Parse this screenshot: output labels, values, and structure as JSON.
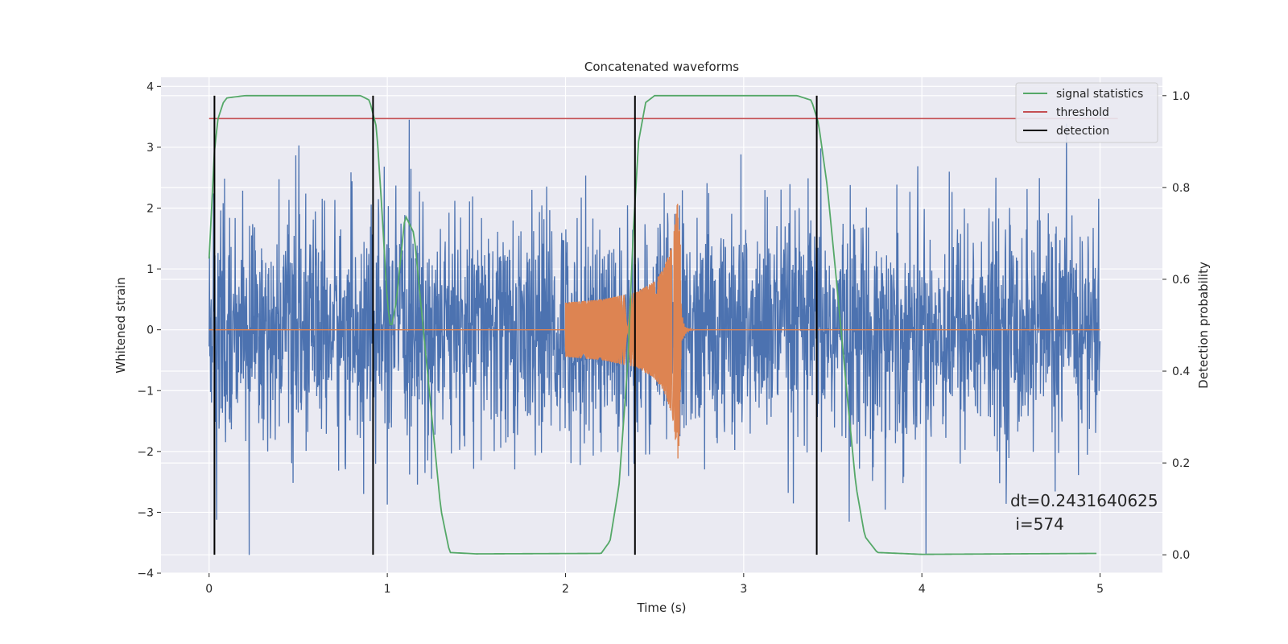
{
  "chart_data": {
    "type": "line",
    "title": "Concatenated waveforms",
    "xlabel": "Time (s)",
    "ylabel": "Whitened strain",
    "ylabel_right": "Detection probability",
    "xlim": [
      -0.27,
      5.35
    ],
    "ylim": [
      -4.0,
      4.15
    ],
    "ylim_right": [
      -0.04,
      1.04
    ],
    "xticks": [
      0,
      1,
      2,
      3,
      4,
      5
    ],
    "yticks": [
      -4,
      -3,
      -2,
      -1,
      0,
      1,
      2,
      3,
      4
    ],
    "yticks_right": [
      0.0,
      0.2,
      0.4,
      0.6,
      0.8,
      1.0
    ],
    "grid": true,
    "legend_position": "top-right",
    "legend": [
      {
        "label": "signal statistics",
        "color": "#55a868"
      },
      {
        "label": "threshold",
        "color": "#c44e52"
      },
      {
        "label": "detection",
        "color": "#000000"
      }
    ],
    "strain": {
      "x_range": [
        0,
        5
      ],
      "std": 0.95,
      "color": "#4c72b0"
    },
    "chirp": {
      "x_range": [
        2.0,
        2.65
      ],
      "amplitude": [
        [
          2.0,
          0.45
        ],
        [
          2.2,
          0.5
        ],
        [
          2.4,
          0.62
        ],
        [
          2.5,
          0.8
        ],
        [
          2.55,
          1.0
        ],
        [
          2.6,
          1.4
        ],
        [
          2.63,
          2.15
        ],
        [
          2.645,
          1.6
        ],
        [
          2.65,
          0.0
        ]
      ],
      "color": "#dd8452"
    },
    "signal_statistics": {
      "x": [
        0.0,
        0.03,
        0.05,
        0.08,
        0.1,
        0.2,
        0.6,
        0.85,
        0.9,
        0.94,
        0.97,
        1.0,
        1.02,
        1.05,
        1.1,
        1.15,
        1.2,
        1.25,
        1.3,
        1.35,
        1.5,
        2.2,
        2.25,
        2.3,
        2.35,
        2.38,
        2.41,
        2.45,
        2.5,
        3.3,
        3.38,
        3.42,
        3.47,
        3.52,
        3.58,
        3.63,
        3.68,
        3.75,
        4.0,
        4.98
      ],
      "y": [
        0.645,
        0.88,
        0.95,
        0.985,
        0.995,
        1.0,
        1.0,
        1.0,
        0.99,
        0.93,
        0.75,
        0.55,
        0.49,
        0.55,
        0.74,
        0.7,
        0.5,
        0.3,
        0.1,
        0.005,
        0.002,
        0.003,
        0.03,
        0.15,
        0.42,
        0.7,
        0.9,
        0.985,
        1.0,
        1.0,
        0.99,
        0.94,
        0.8,
        0.6,
        0.35,
        0.15,
        0.04,
        0.005,
        0.001,
        0.003
      ],
      "color": "#55a868"
    },
    "threshold": {
      "value": 0.95,
      "x_range": [
        0,
        5.1
      ],
      "color": "#c44e52"
    },
    "detections": [
      0.03,
      0.92,
      2.39,
      3.41
    ],
    "detection_range": [
      0.0,
      1.0
    ],
    "annotation": {
      "line1": "dt=0.2431640625",
      "line2": " i=574"
    }
  }
}
